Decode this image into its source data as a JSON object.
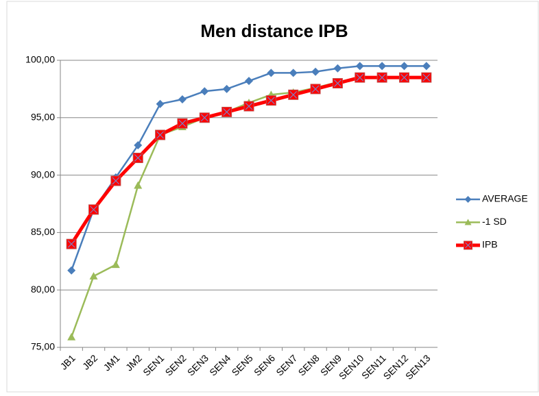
{
  "chart_data": {
    "type": "line",
    "title": "Men distance IPB",
    "categories": [
      "JB1",
      "JB2",
      "JM1",
      "JM2",
      "SEN1",
      "SEN2",
      "SEN3",
      "SEN4",
      "SEN5",
      "SEN6",
      "SEN7",
      "SEN8",
      "SEN9",
      "SEN10",
      "SEN11",
      "SEN12",
      "SEN13"
    ],
    "series": [
      {
        "name": "AVERAGE",
        "color": "#4a7ebb",
        "marker": "diamond",
        "line_width": 2.5,
        "values": [
          81.7,
          87.0,
          89.8,
          92.6,
          96.2,
          96.6,
          97.3,
          97.5,
          98.2,
          98.9,
          98.9,
          99.0,
          99.3,
          99.5,
          99.5,
          99.5,
          99.5
        ]
      },
      {
        "name": "-1 SD",
        "color": "#9bbb59",
        "marker": "triangle",
        "line_width": 2.5,
        "values": [
          75.9,
          81.2,
          82.2,
          89.1,
          93.5,
          94.2,
          95.0,
          95.5,
          96.3,
          97.0,
          97.2,
          97.6,
          98.1,
          98.5,
          98.5,
          98.5,
          98.5
        ]
      },
      {
        "name": "IPB",
        "color": "#ff0000",
        "marker": "square",
        "line_width": 5,
        "values": [
          84.0,
          87.0,
          89.5,
          91.5,
          93.5,
          94.5,
          95.0,
          95.5,
          96.0,
          96.5,
          97.0,
          97.5,
          98.0,
          98.5,
          98.5,
          98.5,
          98.5
        ]
      }
    ],
    "ylim": [
      75,
      100
    ],
    "yticks": [
      {
        "value": 75,
        "label": "75,00"
      },
      {
        "value": 80,
        "label": "80,00"
      },
      {
        "value": 85,
        "label": "85,00"
      },
      {
        "value": 90,
        "label": "90,00"
      },
      {
        "value": 95,
        "label": "95,00"
      },
      {
        "value": 100,
        "label": "100,00"
      }
    ],
    "grid": true,
    "legend": "right"
  }
}
